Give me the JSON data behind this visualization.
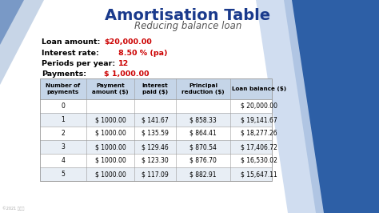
{
  "title": "Amortisation Table",
  "subtitle": "Reducing balance loan",
  "loan_amount": "$20,000.00",
  "interest_rate_val": "8.50",
  "interest_rate_suffix": " % (pa)",
  "periods": "12",
  "payments": "$ 1,000.00",
  "table_headers": [
    "Number of\npayments",
    "Payment\namount ($)",
    "Interest\npaid ($)",
    "Principal\nreduction ($)",
    "Loan balance ($)"
  ],
  "table_data": [
    [
      "0",
      "",
      "",
      "",
      "$ 20,000.00"
    ],
    [
      "1",
      "$ 1000.00",
      "$ 141.67",
      "$ 858.33",
      "$ 19,141.67"
    ],
    [
      "2",
      "$ 1000.00",
      "$ 135.59",
      "$ 864.41",
      "$ 18,277.26"
    ],
    [
      "3",
      "$ 1000.00",
      "$ 129.46",
      "$ 870.54",
      "$ 17,406.72"
    ],
    [
      "4",
      "$ 1000.00",
      "$ 123.30",
      "$ 876.70",
      "$ 16,530.02"
    ],
    [
      "5",
      "$ 1000.00",
      "$ 117.09",
      "$ 882.91",
      "$ 15,647.11"
    ]
  ],
  "title_color": "#1a3a8c",
  "subtitle_color": "#555555",
  "value_color": "#cc0000",
  "table_header_bg": "#c5d5e8",
  "table_row_white": "#ffffff",
  "table_row_light": "#e8eef5",
  "table_border_color": "#999999",
  "bg_main": "#f2f4f8",
  "blue_dark": "#2d5fa6",
  "blue_light_diag": "#c8d8ee",
  "left_diag_color": "#b0c4de",
  "watermark": "©2021 动画吧"
}
